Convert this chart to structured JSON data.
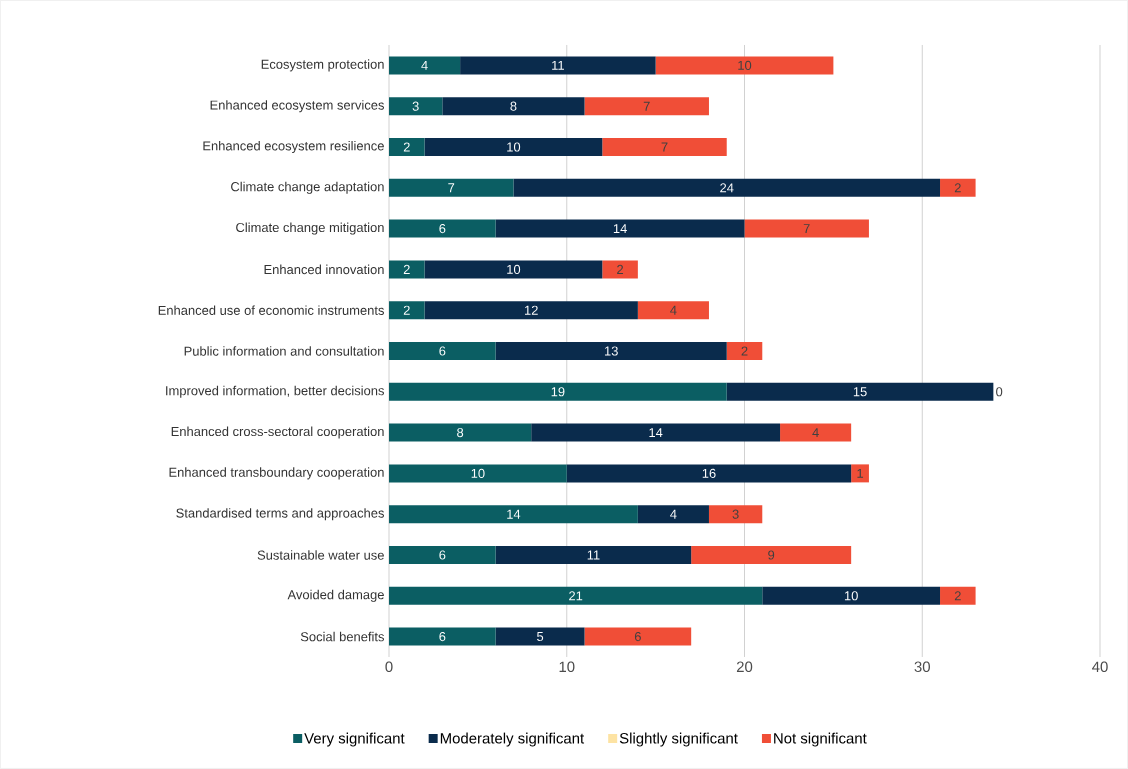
{
  "chart_data": {
    "type": "bar",
    "orientation": "horizontal",
    "stacked": true,
    "categories": [
      "Ecosystem protection",
      "Enhanced ecosystem services",
      "Enhanced ecosystem resilience",
      "Climate change adaptation",
      "Climate change mitigation",
      "Enhanced innovation",
      "Enhanced use of economic instruments",
      "Public information and consultation",
      "Improved information, better decisions",
      "Enhanced cross-sectoral cooperation",
      "Enhanced transboundary cooperation",
      "Standardised terms and approaches",
      "Sustainable water use",
      "Avoided damage",
      "Social benefits"
    ],
    "series": [
      {
        "name": "Very significant",
        "color": "#0b5e63",
        "values": [
          4,
          3,
          2,
          7,
          6,
          2,
          2,
          6,
          19,
          8,
          10,
          14,
          6,
          21,
          6
        ]
      },
      {
        "name": "Moderately significant",
        "color": "#0a2b4c",
        "values": [
          11,
          8,
          10,
          24,
          14,
          10,
          12,
          13,
          15,
          14,
          16,
          4,
          11,
          10,
          5
        ]
      },
      {
        "name": "Slightly significant",
        "color": "#fde3a3",
        "values": [
          null,
          null,
          null,
          null,
          null,
          null,
          null,
          null,
          null,
          null,
          null,
          null,
          null,
          null,
          null
        ]
      },
      {
        "name": "Not significant",
        "color": "#f04e37",
        "values": [
          10,
          7,
          7,
          2,
          7,
          2,
          4,
          2,
          0,
          4,
          1,
          3,
          9,
          2,
          6
        ]
      }
    ],
    "xlim": [
      0,
      40
    ],
    "xticks": [
      0,
      10,
      20,
      30,
      40
    ],
    "grid": "x",
    "legend": "bottom",
    "data_labels": true
  }
}
